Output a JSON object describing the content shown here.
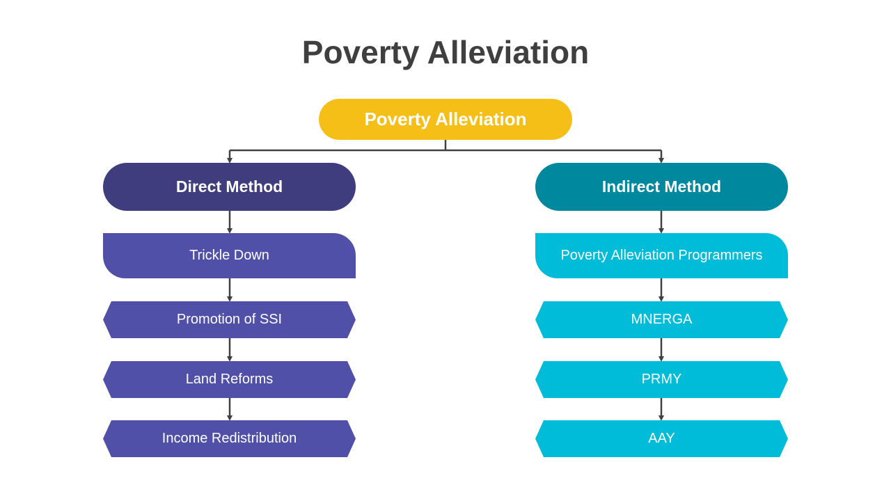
{
  "title": "Poverty Alleviation",
  "root": {
    "label": "Poverty Alleviation"
  },
  "direct": {
    "label": "Direct Method",
    "items": [
      "Trickle Down",
      "Promotion of SSI",
      "Land Reforms",
      "Income Redistribution"
    ]
  },
  "indirect": {
    "label": "Indirect Method",
    "items": [
      "Poverty Alleviation Programmers",
      "MNERGA",
      "PRMY",
      "AAY"
    ]
  },
  "colors": {
    "title_text": "#3f3f3f",
    "root": "#f6bf18",
    "direct_header": "#3f3d7e",
    "direct_items": "#5150a8",
    "indirect_header": "#00889e",
    "indirect_items": "#00bcd9",
    "connector": "#404040"
  }
}
